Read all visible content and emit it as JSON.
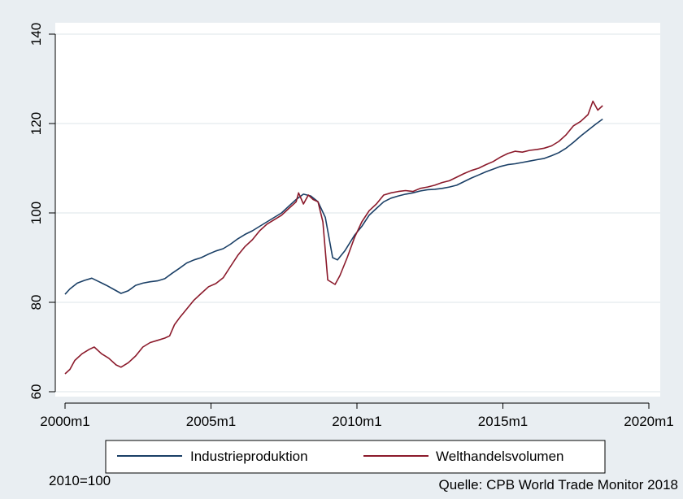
{
  "chart_data": {
    "type": "line",
    "x_unit": "month",
    "xlim": [
      "2000m1",
      "2020m1"
    ],
    "ylim": [
      60,
      140
    ],
    "x_ticks": [
      "2000m1",
      "2005m1",
      "2010m1",
      "2015m1",
      "2020m1"
    ],
    "y_ticks": [
      "60",
      "80",
      "100",
      "120",
      "140"
    ],
    "grid": "horizontal",
    "legend_position": "bottom",
    "note_left": "2010=100",
    "note_right": "Quelle: CPB World Trade Monitor 2018",
    "series": [
      {
        "name": "Industrieproduktion",
        "color": "#1a3f66",
        "points": [
          [
            "2000m1",
            81.8
          ],
          [
            "2000m3",
            83.0
          ],
          [
            "2000m6",
            84.3
          ],
          [
            "2000m9",
            84.9
          ],
          [
            "2000m12",
            85.4
          ],
          [
            "2001m3",
            84.6
          ],
          [
            "2001m6",
            83.8
          ],
          [
            "2001m9",
            82.9
          ],
          [
            "2001m12",
            82.0
          ],
          [
            "2002m3",
            82.6
          ],
          [
            "2002m6",
            83.8
          ],
          [
            "2002m9",
            84.3
          ],
          [
            "2002m12",
            84.6
          ],
          [
            "2003m3",
            84.8
          ],
          [
            "2003m6",
            85.3
          ],
          [
            "2003m9",
            86.5
          ],
          [
            "2003m12",
            87.6
          ],
          [
            "2004m3",
            88.8
          ],
          [
            "2004m6",
            89.5
          ],
          [
            "2004m9",
            90.0
          ],
          [
            "2004m12",
            90.8
          ],
          [
            "2005m3",
            91.5
          ],
          [
            "2005m6",
            92.0
          ],
          [
            "2005m9",
            93.0
          ],
          [
            "2005m12",
            94.2
          ],
          [
            "2006m3",
            95.2
          ],
          [
            "2006m6",
            96.0
          ],
          [
            "2006m9",
            97.0
          ],
          [
            "2006m12",
            98.0
          ],
          [
            "2007m3",
            99.0
          ],
          [
            "2007m6",
            100.0
          ],
          [
            "2007m9",
            101.5
          ],
          [
            "2007m12",
            103.0
          ],
          [
            "2008m3",
            104.2
          ],
          [
            "2008m6",
            103.8
          ],
          [
            "2008m9",
            102.5
          ],
          [
            "2008m12",
            99.0
          ],
          [
            "2009m3",
            90.0
          ],
          [
            "2009m5",
            89.5
          ],
          [
            "2009m8",
            91.5
          ],
          [
            "2009m12",
            95.0
          ],
          [
            "2010m3",
            97.0
          ],
          [
            "2010m6",
            99.5
          ],
          [
            "2010m9",
            101.0
          ],
          [
            "2010m12",
            102.5
          ],
          [
            "2011m3",
            103.3
          ],
          [
            "2011m6",
            103.8
          ],
          [
            "2011m9",
            104.2
          ],
          [
            "2011m12",
            104.5
          ],
          [
            "2012m3",
            104.9
          ],
          [
            "2012m6",
            105.2
          ],
          [
            "2012m9",
            105.3
          ],
          [
            "2012m12",
            105.5
          ],
          [
            "2013m3",
            105.8
          ],
          [
            "2013m6",
            106.2
          ],
          [
            "2013m9",
            107.0
          ],
          [
            "2013m12",
            107.8
          ],
          [
            "2014m3",
            108.5
          ],
          [
            "2014m6",
            109.2
          ],
          [
            "2014m9",
            109.8
          ],
          [
            "2014m12",
            110.4
          ],
          [
            "2015m3",
            110.8
          ],
          [
            "2015m6",
            111.0
          ],
          [
            "2015m9",
            111.3
          ],
          [
            "2015m12",
            111.6
          ],
          [
            "2016m3",
            111.9
          ],
          [
            "2016m6",
            112.2
          ],
          [
            "2016m9",
            112.8
          ],
          [
            "2016m12",
            113.5
          ],
          [
            "2017m3",
            114.5
          ],
          [
            "2017m6",
            115.8
          ],
          [
            "2017m9",
            117.2
          ],
          [
            "2017m12",
            118.5
          ],
          [
            "2018m3",
            119.8
          ],
          [
            "2018m6",
            121.0
          ]
        ]
      },
      {
        "name": "Welthandelsvolumen",
        "color": "#8b1a2b",
        "points": [
          [
            "2000m1",
            64.0
          ],
          [
            "2000m3",
            65.0
          ],
          [
            "2000m5",
            67.0
          ],
          [
            "2000m8",
            68.5
          ],
          [
            "2000m11",
            69.5
          ],
          [
            "2001m1",
            70.0
          ],
          [
            "2001m4",
            68.5
          ],
          [
            "2001m7",
            67.5
          ],
          [
            "2001m10",
            66.0
          ],
          [
            "2001m12",
            65.5
          ],
          [
            "2002m3",
            66.5
          ],
          [
            "2002m6",
            68.0
          ],
          [
            "2002m9",
            70.0
          ],
          [
            "2002m12",
            71.0
          ],
          [
            "2003m3",
            71.5
          ],
          [
            "2003m6",
            72.0
          ],
          [
            "2003m8",
            72.5
          ],
          [
            "2003m10",
            75.0
          ],
          [
            "2003m12",
            76.5
          ],
          [
            "2004m3",
            78.5
          ],
          [
            "2004m6",
            80.5
          ],
          [
            "2004m9",
            82.0
          ],
          [
            "2004m12",
            83.5
          ],
          [
            "2005m3",
            84.2
          ],
          [
            "2005m6",
            85.5
          ],
          [
            "2005m9",
            88.0
          ],
          [
            "2005m12",
            90.5
          ],
          [
            "2006m3",
            92.5
          ],
          [
            "2006m6",
            94.0
          ],
          [
            "2006m9",
            96.0
          ],
          [
            "2006m12",
            97.5
          ],
          [
            "2007m3",
            98.5
          ],
          [
            "2007m6",
            99.5
          ],
          [
            "2007m9",
            101.0
          ],
          [
            "2007m12",
            102.5
          ],
          [
            "2008m1",
            104.5
          ],
          [
            "2008m3",
            102.0
          ],
          [
            "2008m5",
            104.0
          ],
          [
            "2008m7",
            103.0
          ],
          [
            "2008m9",
            102.5
          ],
          [
            "2008m11",
            98.0
          ],
          [
            "2009m1",
            85.0
          ],
          [
            "2009m4",
            84.0
          ],
          [
            "2009m6",
            86.0
          ],
          [
            "2009m9",
            90.0
          ],
          [
            "2009m12",
            94.5
          ],
          [
            "2010m3",
            98.0
          ],
          [
            "2010m6",
            100.5
          ],
          [
            "2010m9",
            102.0
          ],
          [
            "2010m12",
            104.0
          ],
          [
            "2011m3",
            104.5
          ],
          [
            "2011m6",
            104.8
          ],
          [
            "2011m9",
            105.0
          ],
          [
            "2011m12",
            104.8
          ],
          [
            "2012m3",
            105.5
          ],
          [
            "2012m6",
            105.8
          ],
          [
            "2012m9",
            106.2
          ],
          [
            "2012m12",
            106.8
          ],
          [
            "2013m3",
            107.2
          ],
          [
            "2013m6",
            108.0
          ],
          [
            "2013m9",
            108.8
          ],
          [
            "2013m12",
            109.5
          ],
          [
            "2014m3",
            110.0
          ],
          [
            "2014m6",
            110.8
          ],
          [
            "2014m9",
            111.5
          ],
          [
            "2014m12",
            112.5
          ],
          [
            "2015m3",
            113.3
          ],
          [
            "2015m6",
            113.8
          ],
          [
            "2015m9",
            113.6
          ],
          [
            "2015m12",
            114.0
          ],
          [
            "2016m3",
            114.2
          ],
          [
            "2016m6",
            114.5
          ],
          [
            "2016m9",
            115.0
          ],
          [
            "2016m12",
            116.0
          ],
          [
            "2017m3",
            117.5
          ],
          [
            "2017m6",
            119.5
          ],
          [
            "2017m9",
            120.5
          ],
          [
            "2017m12",
            122.0
          ],
          [
            "2018m2",
            125.0
          ],
          [
            "2018m4",
            123.0
          ],
          [
            "2018m6",
            124.0
          ]
        ]
      }
    ]
  }
}
